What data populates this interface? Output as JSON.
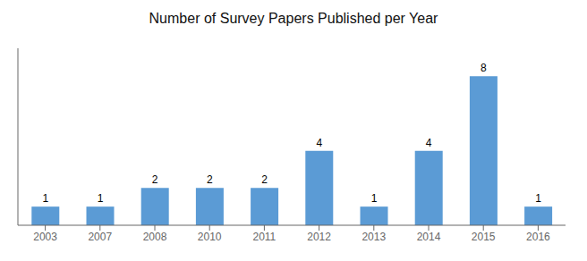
{
  "chart_data": {
    "type": "bar",
    "title": "Number of Survey Papers Published per Year",
    "categories": [
      "2003",
      "2007",
      "2008",
      "2010",
      "2011",
      "2012",
      "2013",
      "2014",
      "2015",
      "2016"
    ],
    "values": [
      1,
      1,
      2,
      2,
      2,
      4,
      1,
      4,
      8,
      1
    ],
    "color": "#5b9bd5",
    "ylim": [
      0,
      9.5
    ],
    "grid": false,
    "data_labels": true,
    "tick_labels": "x"
  }
}
